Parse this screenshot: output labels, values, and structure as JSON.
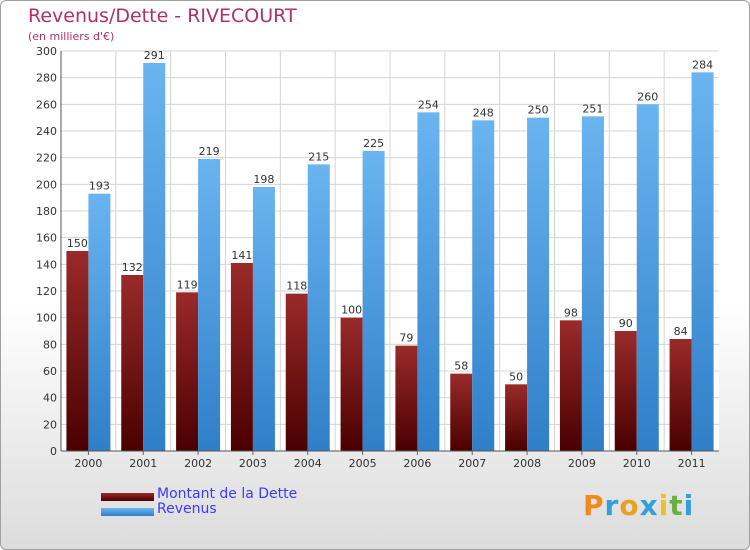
{
  "chart_data": {
    "type": "bar",
    "title": "Revenus/Dette - RIVECOURT",
    "subtitle": "(en milliers d'€)",
    "categories": [
      "2000",
      "2001",
      "2002",
      "2003",
      "2004",
      "2005",
      "2006",
      "2007",
      "2008",
      "2009",
      "2010",
      "2011"
    ],
    "series": [
      {
        "name": "Montant de la Dette",
        "color": "#7a1a1e",
        "values": [
          150,
          132,
          119,
          141,
          118,
          100,
          79,
          58,
          50,
          98,
          90,
          84
        ]
      },
      {
        "name": "Revenus",
        "color": "#4f9fe0",
        "values": [
          193,
          291,
          219,
          198,
          215,
          225,
          254,
          248,
          250,
          251,
          260,
          284
        ]
      }
    ],
    "ylim": [
      0,
      300
    ],
    "yticks": [
      0,
      20,
      40,
      60,
      80,
      100,
      120,
      140,
      160,
      180,
      200,
      220,
      240,
      260,
      280,
      300
    ],
    "grid": true,
    "legend_position": "bottom-left"
  },
  "logo": {
    "text": "Proxiti"
  }
}
